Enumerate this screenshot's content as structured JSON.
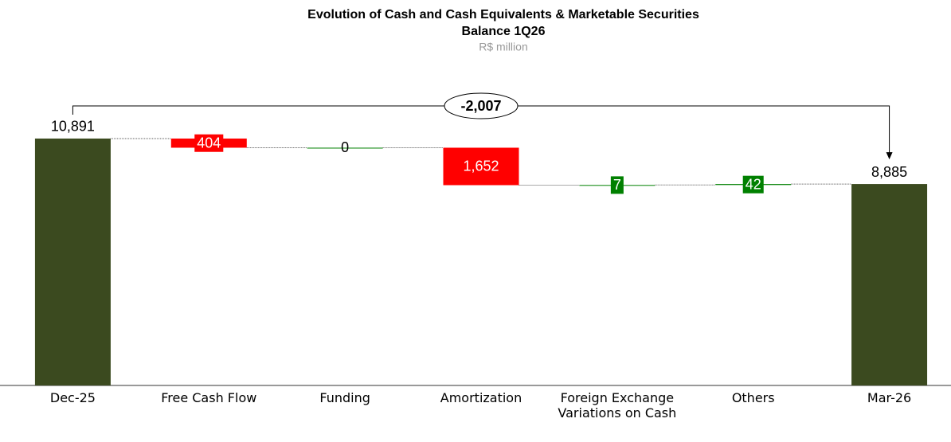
{
  "chart_data": {
    "type": "waterfall",
    "title": "Evolution of Cash and Cash Equivalents & Marketable Securities",
    "subtitle": "Balance 1Q26",
    "unit": "R$ million",
    "categories": [
      "Dec-25",
      "Free Cash Flow",
      "Funding",
      "Amortization",
      "Foreign Exchange Variations on Cash",
      "Others",
      "Mar-26"
    ],
    "values": [
      10891,
      -404,
      0,
      -1652,
      7,
      42,
      8885
    ],
    "value_labels": [
      "10,891",
      "404",
      "0",
      "1,652",
      "7",
      "42",
      "8,885"
    ],
    "kinds": [
      "total",
      "delta",
      "delta",
      "delta",
      "delta",
      "delta",
      "total"
    ],
    "colors": {
      "total": "#3b4a1f",
      "decrease": "#ff0000",
      "increase": "#008000"
    },
    "ylim": [
      0,
      15000
    ],
    "annotation": {
      "value": -2007,
      "label": "-2,007"
    }
  }
}
